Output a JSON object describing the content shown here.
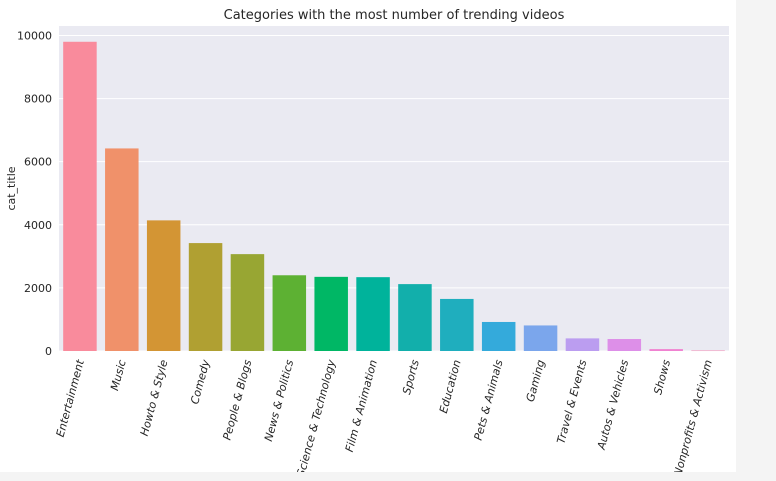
{
  "chart_data": {
    "type": "bar",
    "title": "Categories with the most number of trending videos",
    "xlabel": "",
    "ylabel": "cat_title",
    "ylim": [
      0,
      10300
    ],
    "yticks": [
      0,
      2000,
      4000,
      6000,
      8000,
      10000
    ],
    "grid": true,
    "categories": [
      "Entertainment",
      "Music",
      "Howto & Style",
      "Comedy",
      "People & Blogs",
      "News & Politics",
      "Science & Technology",
      "Film & Animation",
      "Sports",
      "Education",
      "Pets & Animals",
      "Gaming",
      "Travel & Events",
      "Autos & Vehicles",
      "Shows",
      "Nonprofits & Activism"
    ],
    "values": [
      9800,
      6420,
      4140,
      3420,
      3070,
      2400,
      2350,
      2340,
      2120,
      1650,
      920,
      810,
      400,
      380,
      60,
      15
    ],
    "colors": [
      "#f98b9c",
      "#f0916a",
      "#d39534",
      "#b0a032",
      "#98a633",
      "#5db133",
      "#00b765",
      "#00b39b",
      "#12afab",
      "#1faebe",
      "#34aadb",
      "#7ba6ec",
      "#bb9df0",
      "#dd8fe8",
      "#f082d1",
      "#f688b2"
    ],
    "background": "#eaeaf2"
  }
}
